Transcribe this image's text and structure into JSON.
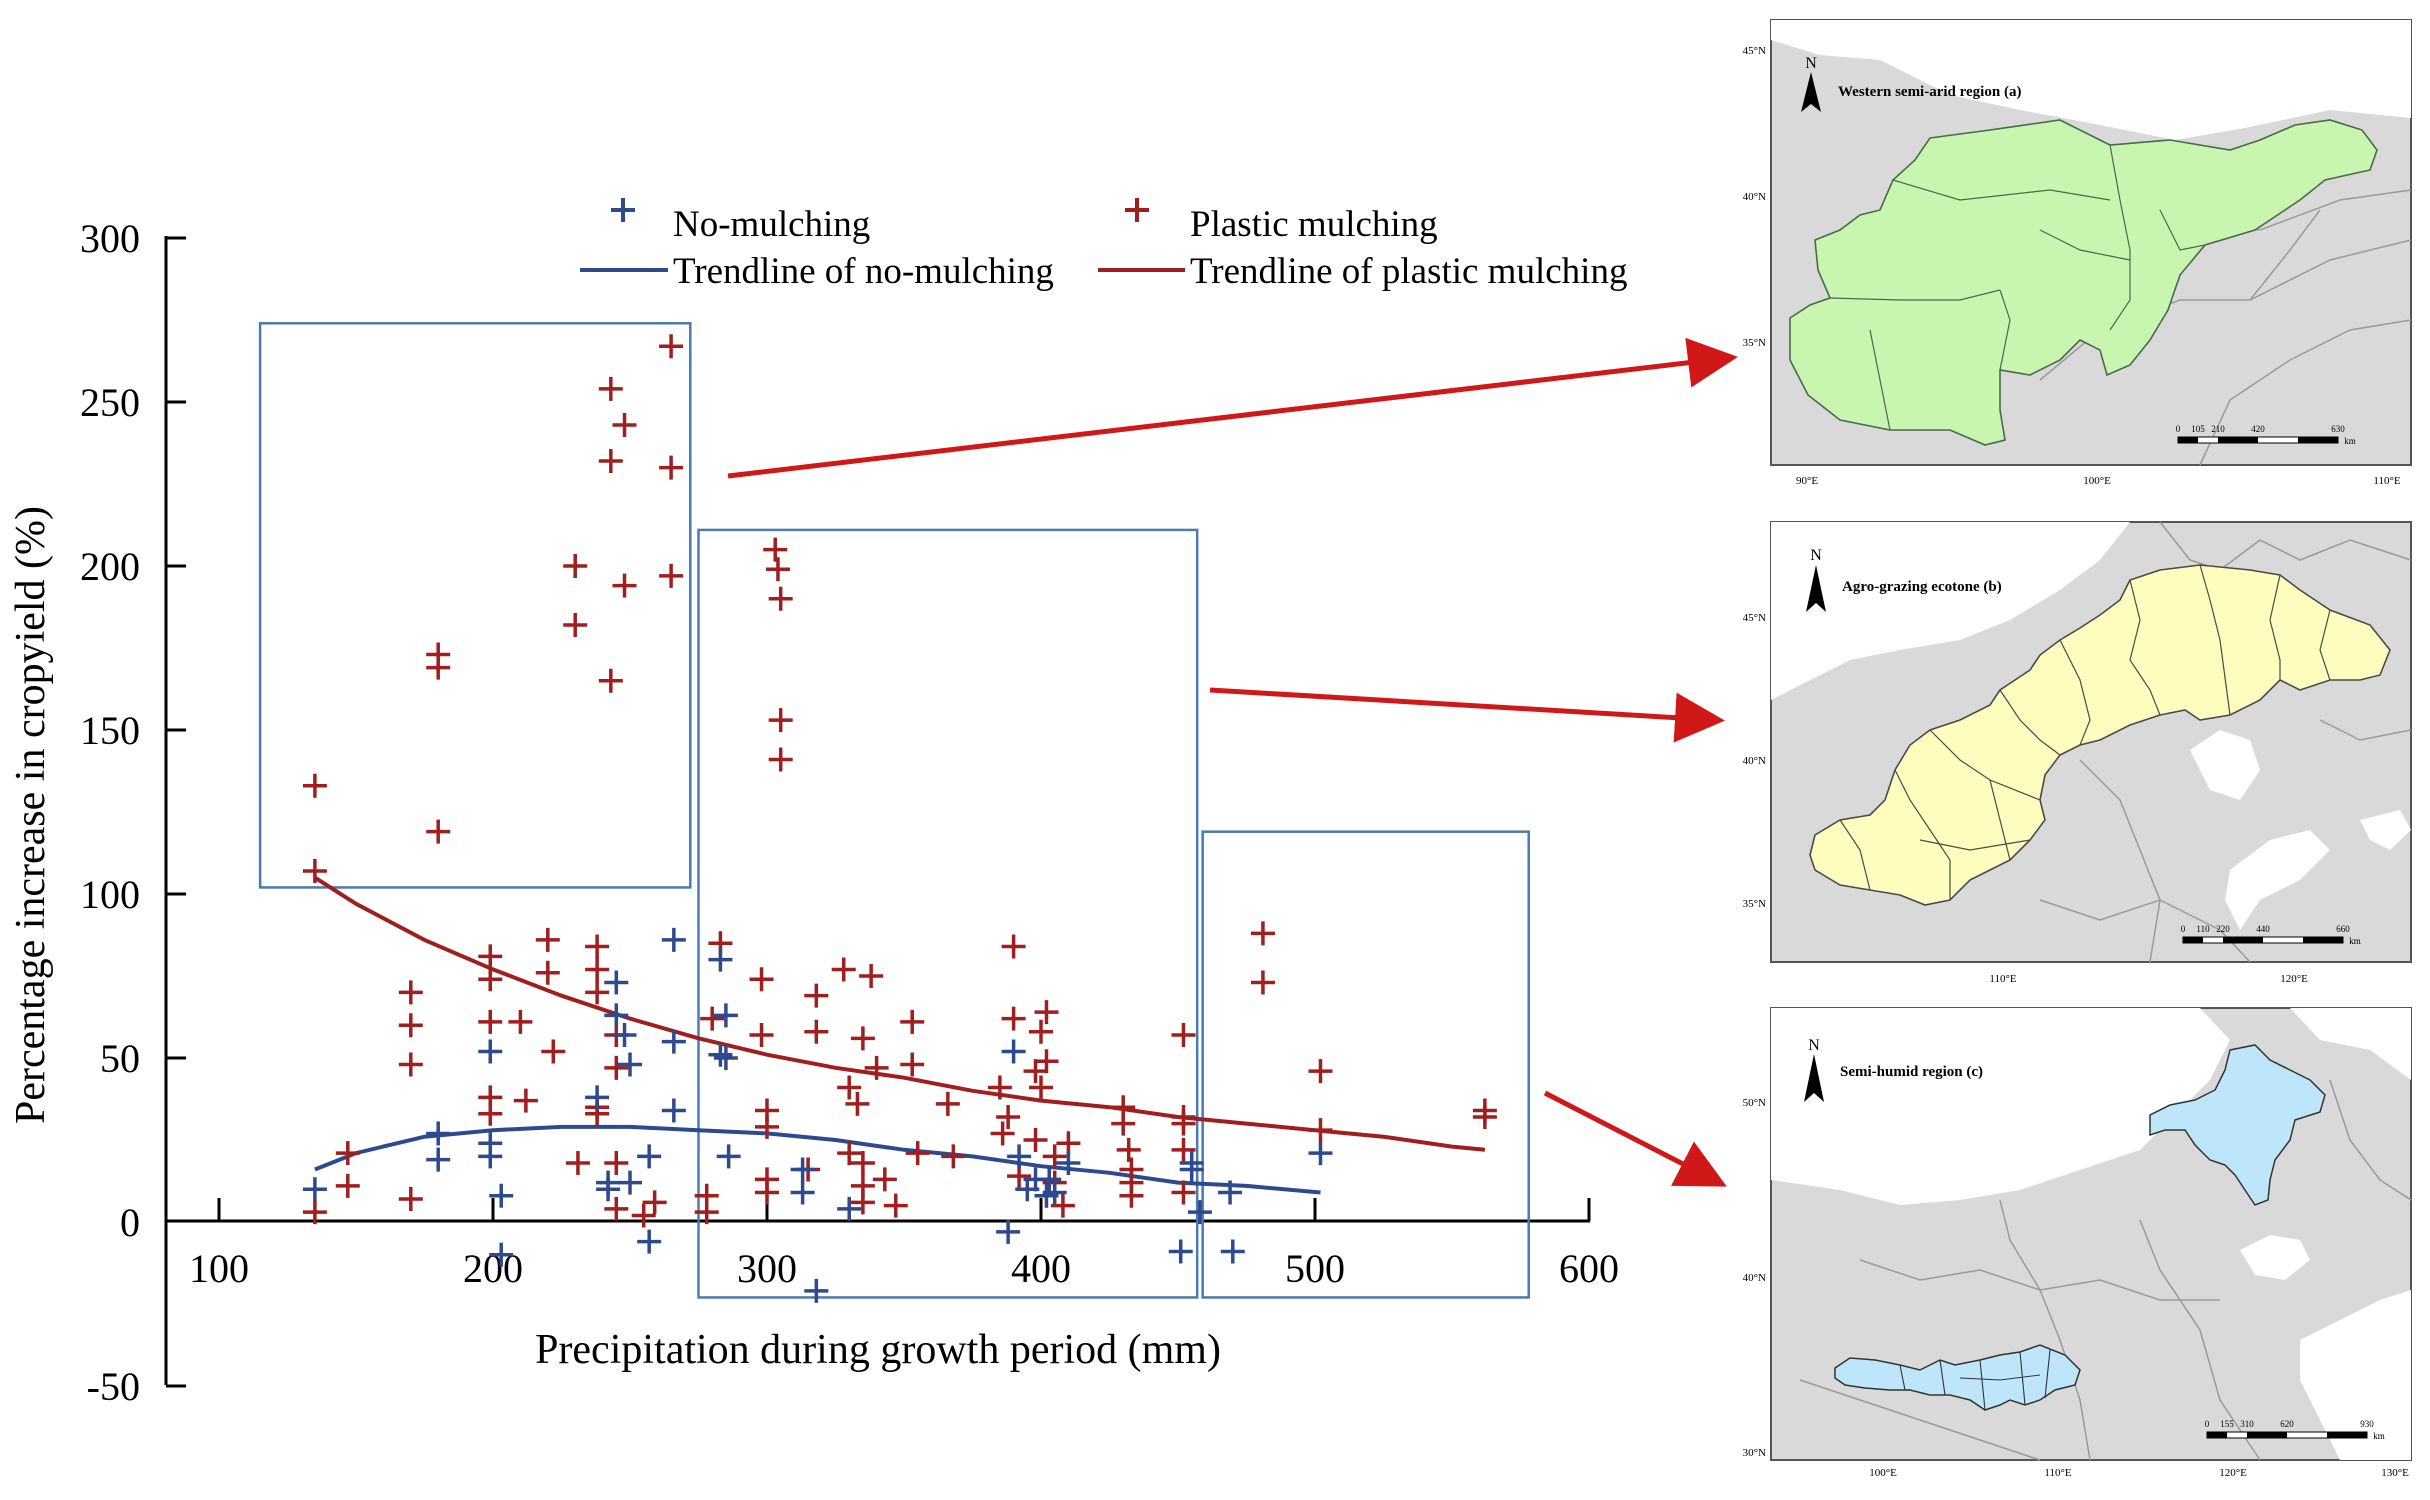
{
  "chart_data": {
    "type": "scatter",
    "xlabel": "Precipitation during growth period (mm)",
    "ylabel": "Percentage increase in cropyield (%)",
    "xlim": [
      100,
      600
    ],
    "ylim": [
      -50,
      300
    ],
    "x_ticks": [
      "100",
      "200",
      "300",
      "400",
      "500",
      "600"
    ],
    "y_ticks": [
      "-50",
      "0",
      "50",
      "100",
      "150",
      "200",
      "250",
      "300"
    ],
    "legend": {
      "no_mulching": "No-mulching",
      "plastic_mulching": "Plastic mulching",
      "trend_no_mulching": "Trendline of no-mulching",
      "trend_plastic_mulching": "Trendline of plastic mulching"
    },
    "colors": {
      "no_mulching": "#2E4A8E",
      "plastic_mulching": "#A01E1E",
      "box": "#4A7AB0",
      "arrow": "#D01818"
    },
    "groups": [
      {
        "name": "Western semi-arid region (a)",
        "x_range": [
          115,
          272
        ],
        "y_range": [
          102,
          274
        ]
      },
      {
        "name": "Agro-grazing ecotone (b)",
        "x_range": [
          275,
          457
        ],
        "y_range": [
          -23,
          211
        ]
      },
      {
        "name": "Semi-humid region (c)",
        "x_range": [
          459,
          578
        ],
        "y_range": [
          -23,
          119
        ]
      }
    ],
    "series": [
      {
        "name": "No-mulching",
        "points": [
          [
            135,
            10
          ],
          [
            180,
            27
          ],
          [
            180,
            19
          ],
          [
            199,
            52
          ],
          [
            199,
            20
          ],
          [
            199,
            24
          ],
          [
            203,
            8
          ],
          [
            203,
            -10
          ],
          [
            238,
            38
          ],
          [
            242,
            12
          ],
          [
            242,
            10
          ],
          [
            245,
            73
          ],
          [
            245,
            63
          ],
          [
            248,
            57
          ],
          [
            250,
            48
          ],
          [
            250,
            12
          ],
          [
            257,
            -6
          ],
          [
            257,
            20
          ],
          [
            266,
            86
          ],
          [
            266,
            55
          ],
          [
            266,
            34
          ],
          [
            283,
            80
          ],
          [
            283,
            51
          ],
          [
            285,
            63
          ],
          [
            285,
            50
          ],
          [
            286,
            20
          ],
          [
            313,
            16
          ],
          [
            313,
            9
          ],
          [
            318,
            -21
          ],
          [
            330,
            4
          ],
          [
            388,
            -3
          ],
          [
            390,
            52
          ],
          [
            392,
            20
          ],
          [
            395,
            10
          ],
          [
            398,
            13
          ],
          [
            402,
            8
          ],
          [
            403,
            13
          ],
          [
            405,
            9
          ],
          [
            410,
            18
          ],
          [
            451,
            -9
          ],
          [
            455,
            18
          ],
          [
            455,
            16
          ],
          [
            458,
            3
          ],
          [
            469,
            9
          ],
          [
            470,
            -9
          ],
          [
            502,
            21
          ]
        ],
        "trend": [
          [
            135,
            16
          ],
          [
            150,
            21
          ],
          [
            175,
            26
          ],
          [
            200,
            28
          ],
          [
            225,
            29
          ],
          [
            250,
            29
          ],
          [
            275,
            28
          ],
          [
            300,
            27
          ],
          [
            325,
            25
          ],
          [
            350,
            22
          ],
          [
            375,
            20
          ],
          [
            400,
            17
          ],
          [
            425,
            15
          ],
          [
            450,
            12
          ],
          [
            475,
            11
          ],
          [
            502,
            9
          ]
        ]
      },
      {
        "name": "Plastic mulching",
        "points": [
          [
            135,
            133
          ],
          [
            135,
            107
          ],
          [
            135,
            3
          ],
          [
            147,
            21
          ],
          [
            147,
            11
          ],
          [
            170,
            70
          ],
          [
            170,
            60
          ],
          [
            170,
            48
          ],
          [
            170,
            7
          ],
          [
            180,
            173
          ],
          [
            180,
            169
          ],
          [
            180,
            119
          ],
          [
            199,
            81
          ],
          [
            199,
            74
          ],
          [
            199,
            61
          ],
          [
            199,
            38
          ],
          [
            199,
            33
          ],
          [
            210,
            61
          ],
          [
            212,
            37
          ],
          [
            220,
            86
          ],
          [
            220,
            76
          ],
          [
            222,
            52
          ],
          [
            230,
            182
          ],
          [
            230,
            200
          ],
          [
            231,
            18
          ],
          [
            238,
            84
          ],
          [
            238,
            77
          ],
          [
            238,
            70
          ],
          [
            238,
            35
          ],
          [
            238,
            33
          ],
          [
            243,
            254
          ],
          [
            243,
            232
          ],
          [
            243,
            165
          ],
          [
            245,
            57
          ],
          [
            245,
            47
          ],
          [
            245,
            18
          ],
          [
            245,
            4
          ],
          [
            248,
            243
          ],
          [
            248,
            194
          ],
          [
            255,
            2
          ],
          [
            259,
            6
          ],
          [
            265,
            267
          ],
          [
            265,
            230
          ],
          [
            265,
            197
          ],
          [
            278,
            8
          ],
          [
            278,
            3
          ],
          [
            280,
            62
          ],
          [
            283,
            85
          ],
          [
            298,
            74
          ],
          [
            298,
            57
          ],
          [
            300,
            34
          ],
          [
            300,
            29
          ],
          [
            300,
            13
          ],
          [
            300,
            9
          ],
          [
            303,
            205
          ],
          [
            304,
            199
          ],
          [
            305,
            190
          ],
          [
            305,
            153
          ],
          [
            305,
            141
          ],
          [
            315,
            16
          ],
          [
            318,
            69
          ],
          [
            318,
            58
          ],
          [
            328,
            77
          ],
          [
            330,
            41
          ],
          [
            330,
            21
          ],
          [
            333,
            36
          ],
          [
            335,
            56
          ],
          [
            335,
            18
          ],
          [
            335,
            11
          ],
          [
            335,
            6
          ],
          [
            338,
            75
          ],
          [
            340,
            47
          ],
          [
            343,
            13
          ],
          [
            347,
            5
          ],
          [
            353,
            61
          ],
          [
            353,
            48
          ],
          [
            355,
            21
          ],
          [
            366,
            36
          ],
          [
            368,
            20
          ],
          [
            385,
            41
          ],
          [
            386,
            27
          ],
          [
            388,
            32
          ],
          [
            390,
            84
          ],
          [
            390,
            62
          ],
          [
            392,
            14
          ],
          [
            398,
            46
          ],
          [
            398,
            25
          ],
          [
            400,
            58
          ],
          [
            400,
            41
          ],
          [
            402,
            64
          ],
          [
            402,
            49
          ],
          [
            405,
            20
          ],
          [
            405,
            12
          ],
          [
            408,
            5
          ],
          [
            410,
            24
          ],
          [
            430,
            35
          ],
          [
            430,
            30
          ],
          [
            432,
            22
          ],
          [
            433,
            16
          ],
          [
            433,
            12
          ],
          [
            433,
            8
          ],
          [
            452,
            57
          ],
          [
            452,
            32
          ],
          [
            452,
            30
          ],
          [
            452,
            22
          ],
          [
            452,
            9
          ],
          [
            481,
            88
          ],
          [
            481,
            73
          ],
          [
            502,
            46
          ],
          [
            502,
            28
          ],
          [
            562,
            34
          ],
          [
            562,
            32
          ]
        ],
        "trend": [
          [
            135,
            105
          ],
          [
            150,
            97
          ],
          [
            175,
            86
          ],
          [
            200,
            77
          ],
          [
            225,
            69
          ],
          [
            250,
            62
          ],
          [
            275,
            56
          ],
          [
            300,
            51
          ],
          [
            325,
            47
          ],
          [
            350,
            44
          ],
          [
            375,
            40
          ],
          [
            400,
            37
          ],
          [
            425,
            35
          ],
          [
            450,
            32
          ],
          [
            475,
            30
          ],
          [
            500,
            28
          ],
          [
            525,
            26
          ],
          [
            550,
            23
          ],
          [
            562,
            22
          ]
        ]
      }
    ]
  },
  "maps": [
    {
      "title": "Western semi-arid region (a)",
      "north": "N",
      "fill": "#C8F5B0",
      "lat_labels": [
        "45°N",
        "40°N",
        "35°N"
      ],
      "lon_labels": [
        "90°E",
        "100°E",
        "110°E"
      ],
      "scale_labels": [
        "0",
        "105",
        "210",
        "420",
        "630"
      ],
      "scale_unit": "km"
    },
    {
      "title": "Agro-grazing ecotone (b)",
      "north": "N",
      "fill": "#FFFDBE",
      "lat_labels": [
        "45°N",
        "40°N",
        "35°N"
      ],
      "lon_labels": [
        "110°E",
        "120°E"
      ],
      "scale_labels": [
        "0",
        "110",
        "220",
        "440",
        "660"
      ],
      "scale_unit": "km"
    },
    {
      "title": "Semi-humid region (c)",
      "north": "N",
      "fill": "#BDE6FA",
      "lat_labels": [
        "50°N",
        "40°N",
        "30°N"
      ],
      "lon_labels": [
        "100°E",
        "110°E",
        "120°E",
        "130°E"
      ],
      "scale_labels": [
        "0",
        "155",
        "310",
        "620",
        "930"
      ],
      "scale_unit": "km"
    }
  ]
}
